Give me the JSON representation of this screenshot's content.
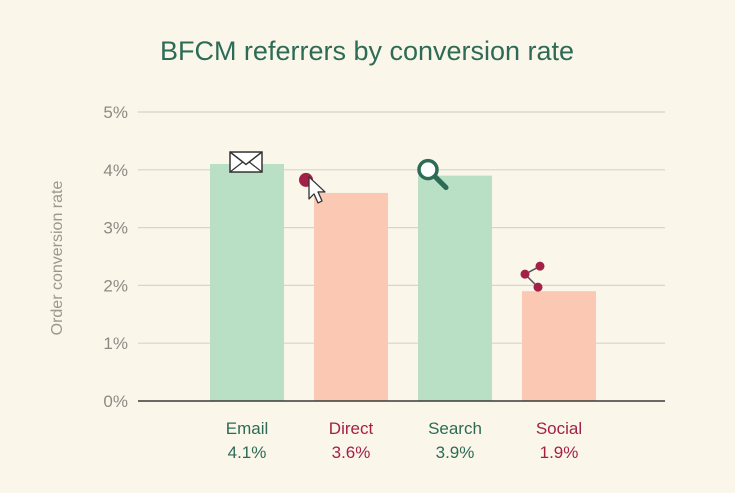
{
  "chart_data": {
    "type": "bar",
    "title": "BFCM referrers by conversion rate",
    "ylabel": "Order conversion rate",
    "xlabel": "",
    "ylim": [
      0,
      5
    ],
    "yticks": [
      0,
      1,
      2,
      3,
      4,
      5
    ],
    "ytick_labels": [
      "0%",
      "1%",
      "2%",
      "3%",
      "4%",
      "5%"
    ],
    "grid": true,
    "categories": [
      "Email",
      "Direct",
      "Search",
      "Social"
    ],
    "values": [
      4.1,
      3.6,
      3.9,
      1.9
    ],
    "value_labels": [
      "4.1%",
      "3.6%",
      "3.9%",
      "1.9%"
    ],
    "icons": [
      "envelope-icon",
      "cursor-click-icon",
      "magnifier-icon",
      "share-icon"
    ],
    "bar_colors": [
      "#b9e0c4",
      "#fbc8b4",
      "#b9e0c4",
      "#fbc8b4"
    ],
    "label_colors": [
      "#2d6b56",
      "#a32046",
      "#2d6b56",
      "#a32046"
    ],
    "colors": {
      "background": "#fbf6ea",
      "grid": "#d9d4c5",
      "axis": "#3a3a3a",
      "title": "#2d6b56"
    }
  }
}
